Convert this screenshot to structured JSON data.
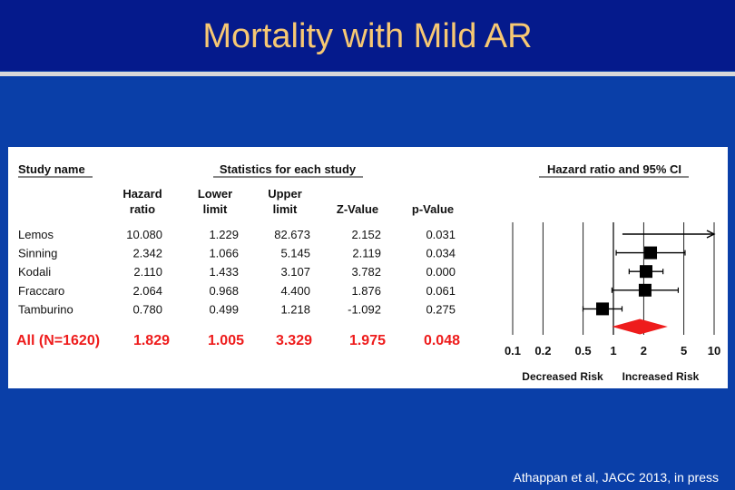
{
  "slide": {
    "title": "Mortality with Mild AR",
    "citation": "Athappan et al, JACC 2013, in press"
  },
  "colors": {
    "background": "#0a3fa8",
    "header": "#051a8c",
    "title": "#f7c873",
    "summary": "#ee1c1c"
  },
  "chart_data": {
    "type": "forest",
    "title": "Hazard ratio and 95% CI",
    "group_header": "Statistics for each study",
    "columns": {
      "study": "Study name",
      "hr": [
        "Hazard",
        "ratio"
      ],
      "lower": [
        "Lower",
        "limit"
      ],
      "upper": [
        "Upper",
        "limit"
      ],
      "z": "Z-Value",
      "p": "p-Value"
    },
    "studies": [
      {
        "name": "Lemos",
        "hr": "10.080",
        "lower": "1.229",
        "upper": "82.673",
        "z": "2.152",
        "p": "0.031",
        "hr_v": 10.08,
        "lower_v": 1.229,
        "upper_v": 82.673
      },
      {
        "name": "Sinning",
        "hr": "2.342",
        "lower": "1.066",
        "upper": "5.145",
        "z": "2.119",
        "p": "0.034",
        "hr_v": 2.342,
        "lower_v": 1.066,
        "upper_v": 5.145
      },
      {
        "name": "Kodali",
        "hr": "2.110",
        "lower": "1.433",
        "upper": "3.107",
        "z": "3.782",
        "p": "0.000",
        "hr_v": 2.11,
        "lower_v": 1.433,
        "upper_v": 3.107
      },
      {
        "name": "Fraccaro",
        "hr": "2.064",
        "lower": "0.968",
        "upper": "4.400",
        "z": "1.876",
        "p": "0.061",
        "hr_v": 2.064,
        "lower_v": 0.968,
        "upper_v": 4.4
      },
      {
        "name": "Tamburino",
        "hr": "0.780",
        "lower": "0.499",
        "upper": "1.218",
        "z": "-1.092",
        "p": "0.275",
        "hr_v": 0.78,
        "lower_v": 0.499,
        "upper_v": 1.218
      }
    ],
    "summary": {
      "name": "All (N=1620)",
      "hr": "1.829",
      "lower": "1.005",
      "upper": "3.329",
      "z": "1.975",
      "p": "0.048",
      "hr_v": 1.829,
      "lower_v": 1.005,
      "upper_v": 3.329
    },
    "x_ticks": [
      {
        "label": "0.1",
        "value": 0.1
      },
      {
        "label": "0.2",
        "value": 0.2
      },
      {
        "label": "0.5",
        "value": 0.5
      },
      {
        "label": "1",
        "value": 1
      },
      {
        "label": "2",
        "value": 2
      },
      {
        "label": "5",
        "value": 5
      },
      {
        "label": "10",
        "value": 10
      }
    ],
    "xscale": "log",
    "xlim": [
      0.1,
      10
    ],
    "axis_labels": {
      "left": "Decreased Risk",
      "right": "Increased Risk"
    }
  }
}
